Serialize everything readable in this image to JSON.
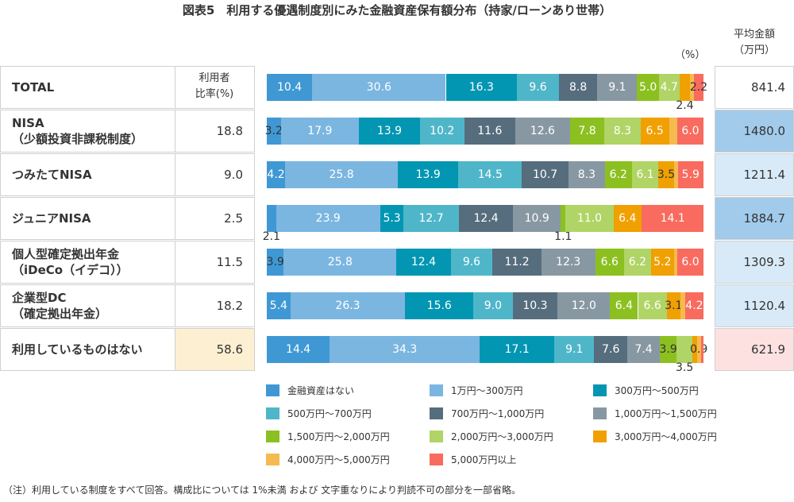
{
  "title": "図表5　利用する優遇制度別にみた金融資産保有額分布（持家/ローンあり世帯）",
  "unit_label": "（%）",
  "avg_header": [
    "平均金額",
    "（万円）"
  ],
  "rate_header": [
    "利用者",
    "比率(%)"
  ],
  "note": "（注）利用している制度をすべて回答。構成比については 1%未満 および 文字重なりにより判読不可の部分を一部省略。",
  "chart_data": {
    "type": "bar",
    "orientation": "horizontal-stacked-100",
    "unit": "%",
    "categories": [
      "金融資産はない",
      "1万円〜300万円",
      "300万円〜500万円",
      "500万円〜700万円",
      "700万円〜1,000万円",
      "1,000万円〜1,500万円",
      "1,500万円〜2,000万円",
      "2,000万円〜3,000万円",
      "3,000万円〜4,000万円",
      "4,000万円〜5,000万円",
      "5,000万円以上"
    ],
    "colors": [
      "#3f98d4",
      "#7bb6e1",
      "#0396b3",
      "#4fb6c9",
      "#566d7e",
      "#8898a3",
      "#8cc021",
      "#b0d466",
      "#f0a000",
      "#f5bb50",
      "#f86b5e"
    ],
    "rows": [
      {
        "label": [
          "TOTAL"
        ],
        "rate": "",
        "avg": "841.4",
        "avg_bg": "#ffffff",
        "rate_bg": "#ffffff",
        "values": [
          10.4,
          30.6,
          16.3,
          9.6,
          8.8,
          9.1,
          5.0,
          4.7,
          2.4,
          0.9,
          2.2
        ],
        "labels": [
          "10.4",
          "30.6",
          "16.3",
          "9.6",
          "8.8",
          "9.1",
          "5.0",
          "4.7",
          "2.4",
          null,
          "2.2"
        ]
      },
      {
        "label": [
          "NISA",
          "（少額投資非課税制度）"
        ],
        "rate": "18.8",
        "avg": "1480.0",
        "avg_bg": "#a2cbeb",
        "rate_bg": "#ffffff",
        "values": [
          3.2,
          17.9,
          13.9,
          10.2,
          11.6,
          12.6,
          7.8,
          8.3,
          6.5,
          1.9,
          6.0
        ],
        "labels": [
          "3.2",
          "17.9",
          "13.9",
          "10.2",
          "11.6",
          "12.6",
          "7.8",
          "8.3",
          "6.5",
          null,
          "6.0"
        ]
      },
      {
        "label": [
          "つみたてNISA"
        ],
        "rate": "9.0",
        "avg": "1211.4",
        "avg_bg": "#d8eaf7",
        "rate_bg": "#ffffff",
        "values": [
          4.2,
          25.8,
          13.9,
          14.5,
          10.7,
          8.3,
          6.2,
          6.1,
          3.5,
          0.9,
          5.9
        ],
        "labels": [
          "4.2",
          "25.8",
          "13.9",
          "14.5",
          "10.7",
          "8.3",
          "6.2",
          "6.1",
          "3.5",
          null,
          "5.9"
        ]
      },
      {
        "label": [
          "ジュニアNISA"
        ],
        "rate": "2.5",
        "avg": "1884.7",
        "avg_bg": "#a2cbeb",
        "rate_bg": "#ffffff",
        "values": [
          2.1,
          23.9,
          5.3,
          12.7,
          12.4,
          10.9,
          1.1,
          11.0,
          6.4,
          0.1,
          14.1
        ],
        "labels": [
          "2.1",
          "23.9",
          "5.3",
          "12.7",
          "12.4",
          "10.9",
          "1.1",
          "11.0",
          "6.4",
          null,
          "14.1"
        ]
      },
      {
        "label": [
          "個人型確定拠出年金",
          "（iDeCo（イデコ））"
        ],
        "rate": "11.5",
        "avg": "1309.3",
        "avg_bg": "#d8eaf7",
        "rate_bg": "#ffffff",
        "values": [
          3.9,
          25.8,
          12.4,
          9.6,
          11.2,
          12.3,
          6.6,
          6.2,
          5.2,
          0.8,
          6.0
        ],
        "labels": [
          "3.9",
          "25.8",
          "12.4",
          "9.6",
          "11.2",
          "12.3",
          "6.6",
          "6.2",
          "5.2",
          null,
          "6.0"
        ]
      },
      {
        "label": [
          "企業型DC",
          "（確定拠出年金）"
        ],
        "rate": "18.2",
        "avg": "1120.4",
        "avg_bg": "#d8eaf7",
        "rate_bg": "#ffffff",
        "values": [
          5.4,
          26.3,
          15.6,
          9.0,
          10.3,
          12.0,
          6.4,
          6.6,
          3.1,
          1.1,
          4.2
        ],
        "labels": [
          "5.4",
          "26.3",
          "15.6",
          "9.0",
          "10.3",
          "12.0",
          "6.4",
          "6.6",
          "3.1",
          null,
          "4.2"
        ]
      },
      {
        "label": [
          "利用しているものはない"
        ],
        "rate": "58.6",
        "avg": "621.9",
        "avg_bg": "#fde1e1",
        "rate_bg": "#fdf0d2",
        "values": [
          14.4,
          34.3,
          17.1,
          9.1,
          7.6,
          7.4,
          3.9,
          3.5,
          1.1,
          0.9,
          0.6
        ],
        "labels": [
          "14.4",
          "34.3",
          "17.1",
          "9.1",
          "7.6",
          "7.4",
          "3.9",
          "3.5",
          null,
          "0.9",
          null
        ]
      }
    ],
    "xlim": [
      0,
      100
    ],
    "legend_position": "bottom"
  }
}
